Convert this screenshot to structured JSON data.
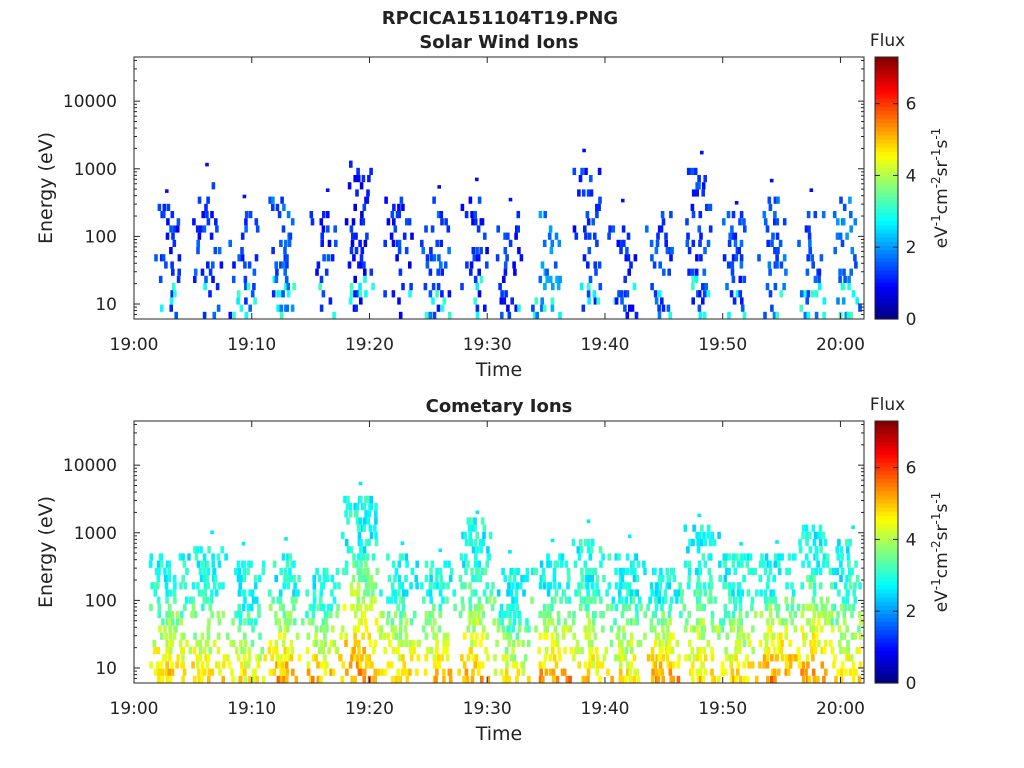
{
  "figure": {
    "title": "RPCICA151104T19.PNG"
  },
  "chart_data": [
    {
      "type": "heatmap",
      "title": "Solar Wind Ions",
      "xlabel": "Time",
      "ylabel": "Energy (eV)",
      "x_ticks": [
        "19:00",
        "19:10",
        "19:20",
        "19:30",
        "19:40",
        "19:50",
        "20:00"
      ],
      "x_range_minutes_after_1900": [
        0,
        62
      ],
      "y_scale": "log",
      "y_ticks": [
        "10",
        "100",
        "1000",
        "10000"
      ],
      "y_range_eV": [
        6,
        45000
      ],
      "colorbar": {
        "label": "Flux",
        "unit": "eV-1cm-2sr-1s-1",
        "ticks": [
          "0",
          "2",
          "4",
          "6"
        ],
        "range": [
          0,
          7.3
        ],
        "colormap": "jet"
      },
      "grid": false,
      "bursts": [
        {
          "t_min": 2.7,
          "flux": 1.0,
          "emax_eV": 400
        },
        {
          "t_min": 6.2,
          "flux": 1.1,
          "emax_eV": 750
        },
        {
          "t_min": 9.3,
          "flux": 1.1,
          "emax_eV": 300
        },
        {
          "t_min": 12.6,
          "flux": 1.4,
          "emax_eV": 450
        },
        {
          "t_min": 16.0,
          "flux": 1.0,
          "emax_eV": 300
        },
        {
          "t_min": 19.1,
          "flux": 0.8,
          "emax_eV": 1500
        },
        {
          "t_min": 22.4,
          "flux": 1.0,
          "emax_eV": 450
        },
        {
          "t_min": 25.6,
          "flux": 1.2,
          "emax_eV": 450
        },
        {
          "t_min": 28.9,
          "flux": 1.0,
          "emax_eV": 450
        },
        {
          "t_min": 31.9,
          "flux": 1.0,
          "emax_eV": 300
        },
        {
          "t_min": 35.0,
          "flux": 1.6,
          "emax_eV": 300
        },
        {
          "t_min": 38.4,
          "flux": 1.0,
          "emax_eV": 1200
        },
        {
          "t_min": 41.5,
          "flux": 1.0,
          "emax_eV": 250
        },
        {
          "t_min": 44.7,
          "flux": 1.2,
          "emax_eV": 250
        },
        {
          "t_min": 47.9,
          "flux": 1.1,
          "emax_eV": 1200
        },
        {
          "t_min": 51.0,
          "flux": 1.2,
          "emax_eV": 250
        },
        {
          "t_min": 54.2,
          "flux": 1.3,
          "emax_eV": 450
        },
        {
          "t_min": 57.5,
          "flux": 1.3,
          "emax_eV": 300
        },
        {
          "t_min": 60.5,
          "flux": 1.5,
          "emax_eV": 400
        }
      ]
    },
    {
      "type": "heatmap",
      "title": "Cometary Ions",
      "xlabel": "Time",
      "ylabel": "Energy (eV)",
      "x_ticks": [
        "19:00",
        "19:10",
        "19:20",
        "19:30",
        "19:40",
        "19:50",
        "20:00"
      ],
      "x_range_minutes_after_1900": [
        0,
        62
      ],
      "y_scale": "log",
      "y_ticks": [
        "10",
        "100",
        "1000",
        "10000"
      ],
      "y_range_eV": [
        6,
        45000
      ],
      "colorbar": {
        "label": "Flux",
        "unit": "eV-1cm-2sr-1s-1",
        "ticks": [
          "0",
          "2",
          "4",
          "6"
        ],
        "range": [
          0,
          7.3
        ],
        "colormap": "jet"
      },
      "grid": false,
      "bursts": [
        {
          "t_min": 2.9,
          "flux": 5.2,
          "emax_eV": 550
        },
        {
          "t_min": 6.2,
          "flux": 5.0,
          "emax_eV": 700
        },
        {
          "t_min": 9.3,
          "flux": 4.8,
          "emax_eV": 450
        },
        {
          "t_min": 12.6,
          "flux": 5.4,
          "emax_eV": 550
        },
        {
          "t_min": 16.0,
          "flux": 5.3,
          "emax_eV": 350
        },
        {
          "t_min": 19.2,
          "flux": 5.5,
          "emax_eV": 4000
        },
        {
          "t_min": 22.4,
          "flux": 5.2,
          "emax_eV": 550
        },
        {
          "t_min": 25.6,
          "flux": 5.3,
          "emax_eV": 450
        },
        {
          "t_min": 28.9,
          "flux": 5.2,
          "emax_eV": 1700
        },
        {
          "t_min": 32.1,
          "flux": 4.8,
          "emax_eV": 350
        },
        {
          "t_min": 35.3,
          "flux": 5.5,
          "emax_eV": 500
        },
        {
          "t_min": 38.5,
          "flux": 5.0,
          "emax_eV": 1000
        },
        {
          "t_min": 41.7,
          "flux": 5.0,
          "emax_eV": 550
        },
        {
          "t_min": 44.8,
          "flux": 5.4,
          "emax_eV": 350
        },
        {
          "t_min": 48.0,
          "flux": 5.0,
          "emax_eV": 1400
        },
        {
          "t_min": 51.1,
          "flux": 5.0,
          "emax_eV": 550
        },
        {
          "t_min": 54.3,
          "flux": 5.6,
          "emax_eV": 550
        },
        {
          "t_min": 57.6,
          "flux": 5.4,
          "emax_eV": 1400
        },
        {
          "t_min": 60.6,
          "flux": 5.0,
          "emax_eV": 1000
        }
      ]
    }
  ]
}
